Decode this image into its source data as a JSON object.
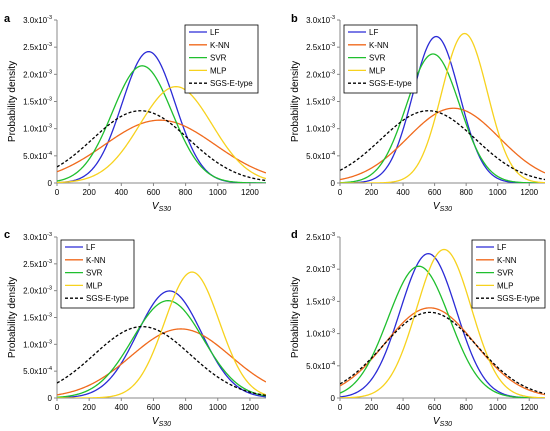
{
  "colors": {
    "LF": "#2b2bd6",
    "K-NN": "#f06a1d",
    "SVR": "#1fbf2e",
    "MLP": "#f7d21e",
    "SGS-E-type": "#000000",
    "axis": "#888888",
    "box": "#000000"
  },
  "chart_data": [
    {
      "panel_label": "a",
      "type": "line",
      "title": "",
      "xlabel_main": "V",
      "xlabel_sub": "S30",
      "ylabel": "Probability density",
      "xlim": [
        0,
        1300
      ],
      "ylim": [
        0,
        0.003
      ],
      "x_ticks": [
        0,
        200,
        400,
        600,
        800,
        1000,
        1200
      ],
      "y_ticks": [
        {
          "value": 0,
          "label": "0"
        },
        {
          "value": 0.0005,
          "label": "5.0x10",
          "exp": "-4"
        },
        {
          "value": 0.001,
          "label": "1.0x10",
          "exp": "-3"
        },
        {
          "value": 0.0015,
          "label": "1.5x10",
          "exp": "-3"
        },
        {
          "value": 0.002,
          "label": "2.0x10",
          "exp": "-3"
        },
        {
          "value": 0.0025,
          "label": "2.5x10",
          "exp": "-3"
        },
        {
          "value": 0.003,
          "label": "3.0x10",
          "exp": "-3"
        }
      ],
      "legend_position": "top-right",
      "series": [
        {
          "name": "LF",
          "style": "solid",
          "mean": 570,
          "sd": 165
        },
        {
          "name": "K-NN",
          "style": "solid",
          "mean": 640,
          "sd": 345
        },
        {
          "name": "SVR",
          "style": "solid",
          "mean": 530,
          "sd": 185
        },
        {
          "name": "MLP",
          "style": "solid",
          "mean": 740,
          "sd": 225
        },
        {
          "name": "SGS-E-type",
          "style": "dashed",
          "mean": 520,
          "sd": 300
        }
      ]
    },
    {
      "panel_label": "b",
      "type": "line",
      "title": "",
      "xlabel_main": "V",
      "xlabel_sub": "S30",
      "ylabel": "Probability density",
      "xlim": [
        0,
        1300
      ],
      "ylim": [
        0,
        0.003
      ],
      "x_ticks": [
        0,
        200,
        400,
        600,
        800,
        1000,
        1200
      ],
      "y_ticks": [
        {
          "value": 0,
          "label": "0"
        },
        {
          "value": 0.0005,
          "label": "5.0x10",
          "exp": "-4"
        },
        {
          "value": 0.001,
          "label": "1.0x10",
          "exp": "-3"
        },
        {
          "value": 0.0015,
          "label": "1.5x10",
          "exp": "-3"
        },
        {
          "value": 0.002,
          "label": "2.0x10",
          "exp": "-3"
        },
        {
          "value": 0.0025,
          "label": "2.5x10",
          "exp": "-3"
        },
        {
          "value": 0.003,
          "label": "3.0x10",
          "exp": "-3"
        }
      ],
      "legend_position": "top-left",
      "series": [
        {
          "name": "LF",
          "style": "solid",
          "mean": 610,
          "sd": 148
        },
        {
          "name": "K-NN",
          "style": "solid",
          "mean": 720,
          "sd": 290
        },
        {
          "name": "SVR",
          "style": "solid",
          "mean": 590,
          "sd": 168
        },
        {
          "name": "MLP",
          "style": "solid",
          "mean": 790,
          "sd": 145
        },
        {
          "name": "SGS-E-type",
          "style": "dashed",
          "mean": 560,
          "sd": 300
        }
      ]
    },
    {
      "panel_label": "c",
      "type": "line",
      "title": "",
      "xlabel_main": "V",
      "xlabel_sub": "S30",
      "ylabel": "Probability density",
      "xlim": [
        0,
        1300
      ],
      "ylim": [
        0,
        0.003
      ],
      "x_ticks": [
        0,
        200,
        400,
        600,
        800,
        1000,
        1200
      ],
      "y_ticks": [
        {
          "value": 0,
          "label": "0"
        },
        {
          "value": 0.0005,
          "label": "5.0x10",
          "exp": "-4"
        },
        {
          "value": 0.001,
          "label": "1.0x10",
          "exp": "-3"
        },
        {
          "value": 0.0015,
          "label": "1.5x10",
          "exp": "-3"
        },
        {
          "value": 0.002,
          "label": "2.0x10",
          "exp": "-3"
        },
        {
          "value": 0.0025,
          "label": "2.5x10",
          "exp": "-3"
        },
        {
          "value": 0.003,
          "label": "3.0x10",
          "exp": "-3"
        }
      ],
      "legend_position": "top-left",
      "series": [
        {
          "name": "LF",
          "style": "solid",
          "mean": 700,
          "sd": 200
        },
        {
          "name": "K-NN",
          "style": "solid",
          "mean": 770,
          "sd": 310
        },
        {
          "name": "SVR",
          "style": "solid",
          "mean": 690,
          "sd": 220
        },
        {
          "name": "MLP",
          "style": "solid",
          "mean": 840,
          "sd": 170
        },
        {
          "name": "SGS-E-type",
          "style": "dashed",
          "mean": 530,
          "sd": 300
        }
      ]
    },
    {
      "panel_label": "d",
      "type": "line",
      "title": "",
      "xlabel_main": "V",
      "xlabel_sub": "S30",
      "ylabel": "Probability density",
      "xlim": [
        0,
        1300
      ],
      "ylim": [
        0,
        0.0025
      ],
      "x_ticks": [
        0,
        200,
        400,
        600,
        800,
        1000,
        1200
      ],
      "y_ticks": [
        {
          "value": 0,
          "label": "0"
        },
        {
          "value": 0.0005,
          "label": "5.0x10",
          "exp": "-4"
        },
        {
          "value": 0.001,
          "label": "1.0x10",
          "exp": "-3"
        },
        {
          "value": 0.0015,
          "label": "1.5x10",
          "exp": "-3"
        },
        {
          "value": 0.002,
          "label": "2.0x10",
          "exp": "-3"
        },
        {
          "value": 0.0025,
          "label": "2.5x10",
          "exp": "-3"
        }
      ],
      "legend_position": "top-right",
      "series": [
        {
          "name": "LF",
          "style": "solid",
          "mean": 560,
          "sd": 178
        },
        {
          "name": "K-NN",
          "style": "solid",
          "mean": 570,
          "sd": 285
        },
        {
          "name": "SVR",
          "style": "solid",
          "mean": 500,
          "sd": 195
        },
        {
          "name": "MLP",
          "style": "solid",
          "mean": 660,
          "sd": 173
        },
        {
          "name": "SGS-E-type",
          "style": "dashed",
          "mean": 570,
          "sd": 300
        }
      ]
    }
  ]
}
